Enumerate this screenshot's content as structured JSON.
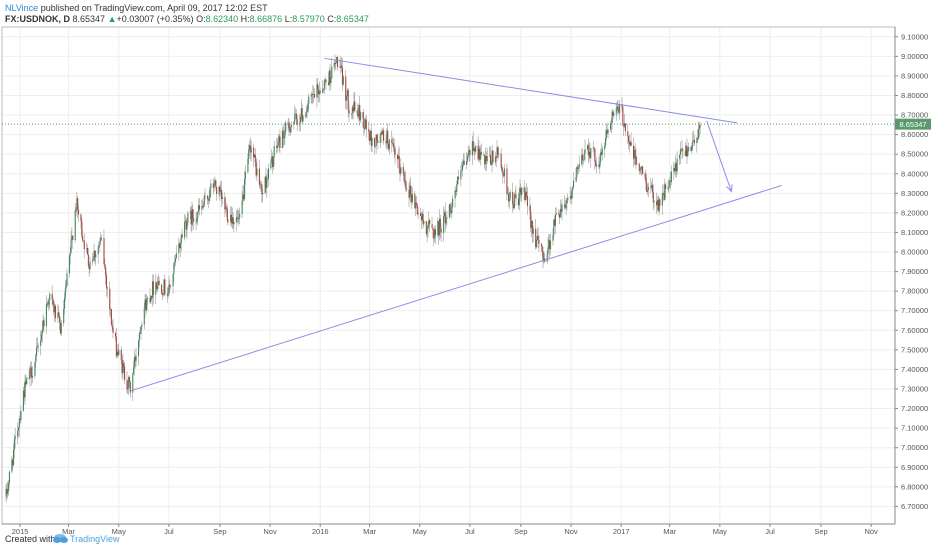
{
  "header": {
    "user": "NLVince",
    "published_text": " published on TradingView.com, April 09, 2017 12:02 EST",
    "symbol": "FX:USDNOK, D",
    "last": "8.65347",
    "change": "+0.03007 (+0.35%)",
    "o_label": "O:",
    "o_value": "8.62340",
    "h_label": "H:",
    "h_value": "8.66876",
    "l_label": "L:",
    "l_value": "8.57970",
    "c_label": "C:",
    "c_value": "8.65347"
  },
  "footer": {
    "created_with": "Created with",
    "brand": "TradingView"
  },
  "colors": {
    "up": "#3a8a5c",
    "down": "#a8423a",
    "trendline": "#8c8ce6",
    "price_tag": "#5b9a70",
    "grid": "#eeeeee"
  },
  "chart_data": {
    "type": "candlestick",
    "symbol": "FX:USDNOK",
    "interval": "D",
    "y_ticks": [
      "9.10000",
      "9.00000",
      "8.90000",
      "8.80000",
      "8.70000",
      "8.60000",
      "8.50000",
      "8.40000",
      "8.30000",
      "8.20000",
      "8.10000",
      "8.00000",
      "7.90000",
      "7.80000",
      "7.70000",
      "7.60000",
      "7.50000",
      "7.40000",
      "7.30000",
      "7.20000",
      "7.10000",
      "7.00000",
      "6.90000",
      "6.80000",
      "6.70000"
    ],
    "y_values": [
      9.1,
      9.0,
      8.9,
      8.8,
      8.7,
      8.6,
      8.5,
      8.4,
      8.3,
      8.2,
      8.1,
      8.0,
      7.9,
      7.8,
      7.7,
      7.6,
      7.5,
      7.4,
      7.3,
      7.2,
      7.1,
      7.0,
      6.9,
      6.8,
      6.7
    ],
    "x_ticks": [
      "2015",
      "Mar",
      "May",
      "Jul",
      "Sep",
      "Nov",
      "2016",
      "Mar",
      "May",
      "Jul",
      "Sep",
      "Nov",
      "2017",
      "Mar",
      "May",
      "Jul",
      "Sep",
      "Nov"
    ],
    "x_tick_dates": [
      "2015-01",
      "2015-03",
      "2015-05",
      "2015-07",
      "2015-09",
      "2015-11",
      "2016-01",
      "2016-03",
      "2016-05",
      "2016-07",
      "2016-09",
      "2016-11",
      "2017-01",
      "2017-03",
      "2017-05",
      "2017-07",
      "2017-09",
      "2017-11"
    ],
    "current_price": 8.65347,
    "current_price_label": "8.65347",
    "price_path": [
      [
        "2014-12-15",
        6.75
      ],
      [
        "2015-01-05",
        7.28
      ],
      [
        "2015-01-20",
        7.45
      ],
      [
        "2015-02-05",
        7.78
      ],
      [
        "2015-02-20",
        7.6
      ],
      [
        "2015-03-10",
        8.25
      ],
      [
        "2015-03-25",
        7.95
      ],
      [
        "2015-04-10",
        8.05
      ],
      [
        "2015-04-25",
        7.55
      ],
      [
        "2015-05-10",
        7.35
      ],
      [
        "2015-05-15",
        7.3
      ],
      [
        "2015-05-30",
        7.7
      ],
      [
        "2015-06-15",
        7.85
      ],
      [
        "2015-07-01",
        7.8
      ],
      [
        "2015-07-20",
        8.15
      ],
      [
        "2015-08-10",
        8.22
      ],
      [
        "2015-08-25",
        8.35
      ],
      [
        "2015-09-10",
        8.2
      ],
      [
        "2015-09-25",
        8.15
      ],
      [
        "2015-10-08",
        8.55
      ],
      [
        "2015-10-22",
        8.3
      ],
      [
        "2015-11-10",
        8.55
      ],
      [
        "2015-11-25",
        8.65
      ],
      [
        "2015-12-10",
        8.7
      ],
      [
        "2015-12-25",
        8.8
      ],
      [
        "2016-01-10",
        8.88
      ],
      [
        "2016-01-22",
        8.98
      ],
      [
        "2016-02-05",
        8.75
      ],
      [
        "2016-02-20",
        8.7
      ],
      [
        "2016-03-05",
        8.55
      ],
      [
        "2016-03-20",
        8.6
      ],
      [
        "2016-04-05",
        8.45
      ],
      [
        "2016-04-20",
        8.3
      ],
      [
        "2016-05-05",
        8.15
      ],
      [
        "2016-05-20",
        8.1
      ],
      [
        "2016-06-05",
        8.2
      ],
      [
        "2016-06-20",
        8.4
      ],
      [
        "2016-07-05",
        8.55
      ],
      [
        "2016-07-20",
        8.45
      ],
      [
        "2016-08-05",
        8.5
      ],
      [
        "2016-08-20",
        8.25
      ],
      [
        "2016-09-05",
        8.3
      ],
      [
        "2016-09-20",
        8.05
      ],
      [
        "2016-10-01",
        7.97
      ],
      [
        "2016-10-15",
        8.2
      ],
      [
        "2016-11-01",
        8.3
      ],
      [
        "2016-11-20",
        8.55
      ],
      [
        "2016-12-05",
        8.45
      ],
      [
        "2016-12-20",
        8.7
      ],
      [
        "2017-01-01",
        8.72
      ],
      [
        "2017-01-15",
        8.5
      ],
      [
        "2017-02-01",
        8.35
      ],
      [
        "2017-02-15",
        8.25
      ],
      [
        "2017-03-01",
        8.35
      ],
      [
        "2017-03-15",
        8.5
      ],
      [
        "2017-03-28",
        8.55
      ],
      [
        "2017-04-08",
        8.65
      ]
    ],
    "drawings": [
      {
        "type": "trendline",
        "from": [
          "2015-05-15",
          7.29
        ],
        "to": [
          "2017-07-15",
          8.34
        ]
      },
      {
        "type": "trendline",
        "from": [
          "2016-01-06",
          8.99
        ],
        "to": [
          "2017-05-22",
          8.66
        ]
      },
      {
        "type": "arrow",
        "from": [
          "2017-04-15",
          8.67
        ],
        "to": [
          "2017-05-15",
          8.31
        ]
      }
    ]
  }
}
